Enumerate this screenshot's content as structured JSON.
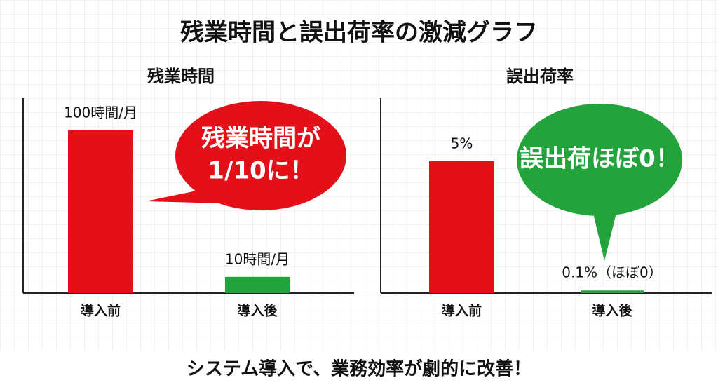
{
  "title": "残業時間と誤出荷率の激減グラフ",
  "caption": "システム導入で、業務効率が劇的に改善！",
  "chart_data": [
    {
      "type": "bar",
      "title": "残業時間",
      "categories": [
        "導入前",
        "導入後"
      ],
      "values": [
        100,
        10
      ],
      "value_labels": [
        "100時間/月",
        "10時間/月"
      ],
      "colors": [
        "#e3101a",
        "#22a33c"
      ],
      "annotation": [
        "残業時間が",
        "1/10に！"
      ],
      "annotation_color": "#e3101a"
    },
    {
      "type": "bar",
      "title": "誤出荷率",
      "categories": [
        "導入前",
        "導入後"
      ],
      "values": [
        5,
        0.1
      ],
      "value_labels": [
        "5%",
        "0.1%（ほぼ0）"
      ],
      "colors": [
        "#e3101a",
        "#22a33c"
      ],
      "annotation": [
        "誤出荷ほぼ0！"
      ],
      "annotation_color": "#22a33c"
    }
  ]
}
